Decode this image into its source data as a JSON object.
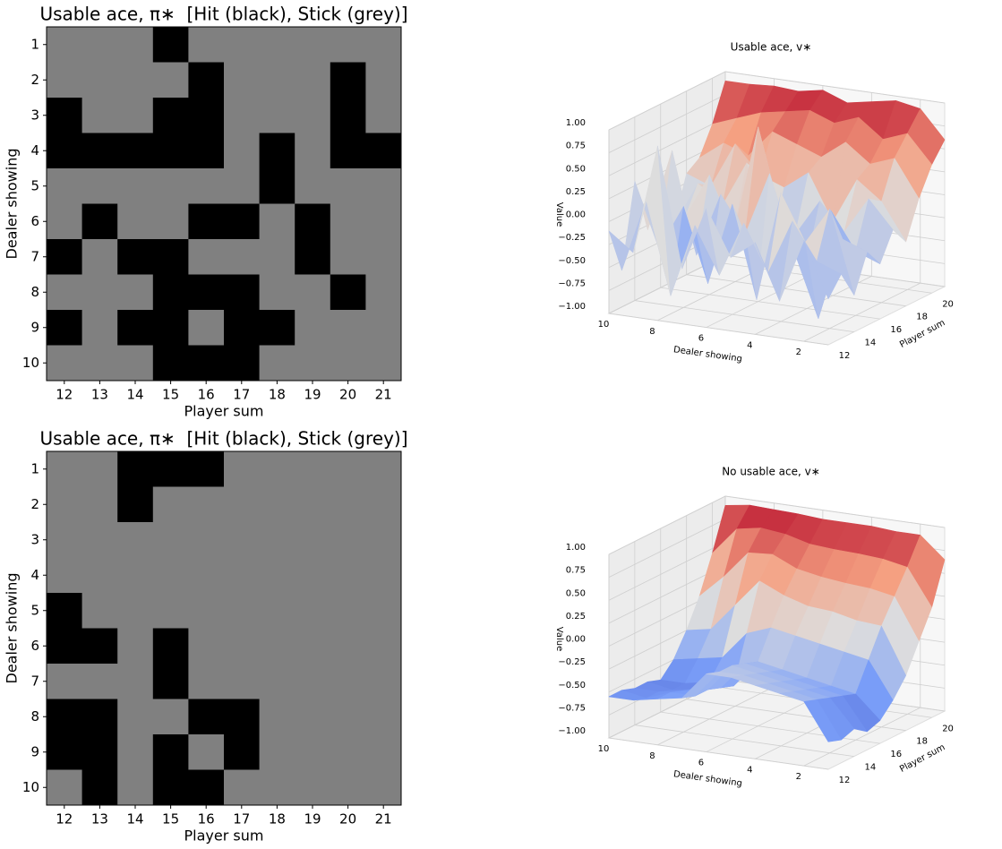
{
  "chart_data": [
    {
      "type": "heatmap",
      "title": "Usable ace, π∗  [Hit (black), Stick (grey)]",
      "xlabel": "Player sum",
      "ylabel": "Dealer showing",
      "categories": [
        12,
        13,
        14,
        15,
        16,
        17,
        18,
        19,
        20,
        21
      ],
      "rows": [
        1,
        2,
        3,
        4,
        5,
        6,
        7,
        8,
        9,
        10
      ],
      "colors": [
        "#808080",
        "#000000"
      ],
      "values": [
        [
          0,
          0,
          0,
          1,
          0,
          0,
          0,
          0,
          0,
          0
        ],
        [
          0,
          0,
          0,
          0,
          1,
          0,
          0,
          0,
          1,
          0
        ],
        [
          1,
          0,
          0,
          1,
          1,
          0,
          0,
          0,
          1,
          0
        ],
        [
          1,
          1,
          1,
          1,
          1,
          0,
          1,
          0,
          1,
          1
        ],
        [
          0,
          0,
          0,
          0,
          0,
          0,
          1,
          0,
          0,
          0
        ],
        [
          0,
          1,
          0,
          0,
          1,
          1,
          0,
          1,
          0,
          0
        ],
        [
          1,
          0,
          1,
          1,
          0,
          0,
          0,
          1,
          0,
          0
        ],
        [
          0,
          0,
          0,
          1,
          1,
          1,
          0,
          0,
          1,
          0
        ],
        [
          1,
          0,
          1,
          1,
          0,
          1,
          1,
          0,
          0,
          0
        ],
        [
          0,
          0,
          0,
          1,
          1,
          1,
          0,
          0,
          0,
          0
        ]
      ]
    },
    {
      "type": "surface",
      "title": "Usable ace, v∗",
      "xlabel": "Dealer showing",
      "ylabel": "Player sum",
      "zlabel": "Value",
      "dealer": [
        1,
        2,
        3,
        4,
        5,
        6,
        7,
        8,
        9,
        10
      ],
      "player": [
        12,
        13,
        14,
        15,
        16,
        17,
        18,
        19,
        20,
        21
      ],
      "xticks": [
        2,
        4,
        6,
        8,
        10
      ],
      "yticks": [
        12,
        14,
        16,
        18,
        20
      ],
      "zlim": [
        -1,
        1
      ],
      "zticks": [
        {
          "value": -1,
          "label": "−1.00"
        },
        {
          "value": -0.75,
          "label": "−0.75"
        },
        {
          "value": -0.5,
          "label": "−0.50"
        },
        {
          "value": -0.25,
          "label": "−0.25"
        },
        {
          "value": 0,
          "label": "0.00"
        },
        {
          "value": 0.25,
          "label": "0.25"
        },
        {
          "value": 0.5,
          "label": "0.50"
        },
        {
          "value": 0.75,
          "label": "0.75"
        },
        {
          "value": 1,
          "label": "1.00"
        }
      ],
      "colormap": "coolwarm",
      "values": [
        [
          -0.5,
          -0.3,
          -0.6,
          -0.2,
          -0.4,
          -0.1,
          -0.3,
          0.1,
          0.4,
          0.6
        ],
        [
          0.1,
          -0.2,
          0.3,
          -0.1,
          -0.3,
          0.2,
          0.1,
          0.5,
          0.7,
          0.9
        ],
        [
          -0.6,
          0.2,
          -0.1,
          -1.0,
          0.1,
          -0.2,
          0.3,
          0.4,
          0.6,
          0.95
        ],
        [
          0.0,
          -0.4,
          0.4,
          -0.3,
          -0.5,
          0.1,
          -0.2,
          0.6,
          0.8,
          0.9
        ],
        [
          -0.2,
          0.1,
          -0.8,
          0.5,
          -0.1,
          -0.3,
          0.3,
          0.4,
          0.7,
          0.85
        ],
        [
          0.3,
          -0.5,
          0.2,
          -0.2,
          0.9,
          -0.6,
          0.1,
          0.5,
          0.8,
          0.95
        ],
        [
          -0.4,
          0.0,
          -0.7,
          0.2,
          -0.3,
          0.4,
          0.2,
          0.6,
          0.75,
          0.9
        ],
        [
          0.9,
          -0.8,
          0.1,
          -0.5,
          0.3,
          -0.1,
          0.5,
          0.3,
          0.7,
          0.92
        ],
        [
          -0.3,
          0.2,
          -0.4,
          0.6,
          -0.2,
          0.1,
          0.0,
          0.4,
          0.6,
          0.9
        ],
        [
          -0.1,
          -0.6,
          0.3,
          -0.3,
          0.2,
          -0.4,
          0.1,
          0.2,
          0.5,
          0.9
        ]
      ]
    },
    {
      "type": "heatmap",
      "title": "Usable ace, π∗  [Hit (black), Stick (grey)]",
      "xlabel": "Player sum",
      "ylabel": "Dealer showing",
      "categories": [
        12,
        13,
        14,
        15,
        16,
        17,
        18,
        19,
        20,
        21
      ],
      "rows": [
        1,
        2,
        3,
        4,
        5,
        6,
        7,
        8,
        9,
        10
      ],
      "colors": [
        "#808080",
        "#000000"
      ],
      "values": [
        [
          0,
          0,
          1,
          1,
          1,
          0,
          0,
          0,
          0,
          0
        ],
        [
          0,
          0,
          1,
          0,
          0,
          0,
          0,
          0,
          0,
          0
        ],
        [
          0,
          0,
          0,
          0,
          0,
          0,
          0,
          0,
          0,
          0
        ],
        [
          0,
          0,
          0,
          0,
          0,
          0,
          0,
          0,
          0,
          0
        ],
        [
          1,
          0,
          0,
          0,
          0,
          0,
          0,
          0,
          0,
          0
        ],
        [
          1,
          1,
          0,
          1,
          0,
          0,
          0,
          0,
          0,
          0
        ],
        [
          0,
          0,
          0,
          1,
          0,
          0,
          0,
          0,
          0,
          0
        ],
        [
          1,
          1,
          0,
          0,
          1,
          1,
          0,
          0,
          0,
          0
        ],
        [
          1,
          1,
          0,
          1,
          0,
          1,
          0,
          0,
          0,
          0
        ],
        [
          0,
          1,
          0,
          1,
          1,
          0,
          0,
          0,
          0,
          0
        ]
      ]
    },
    {
      "type": "surface",
      "title": "No usable ace, v∗",
      "xlabel": "Dealer showing",
      "ylabel": "Player sum",
      "zlabel": "Value",
      "dealer": [
        1,
        2,
        3,
        4,
        5,
        6,
        7,
        8,
        9,
        10
      ],
      "player": [
        12,
        13,
        14,
        15,
        16,
        17,
        18,
        19,
        20,
        21
      ],
      "xticks": [
        2,
        4,
        6,
        8,
        10
      ],
      "yticks": [
        12,
        14,
        16,
        18,
        20
      ],
      "zlim": [
        -1,
        1
      ],
      "zticks": [
        {
          "value": -1,
          "label": "−1.00"
        },
        {
          "value": -0.75,
          "label": "−0.75"
        },
        {
          "value": -0.5,
          "label": "−0.50"
        },
        {
          "value": -0.25,
          "label": "−0.25"
        },
        {
          "value": 0,
          "label": "0.00"
        },
        {
          "value": 0.25,
          "label": "0.25"
        },
        {
          "value": 0.5,
          "label": "0.50"
        },
        {
          "value": 0.75,
          "label": "0.75"
        },
        {
          "value": 1,
          "label": "1.00"
        }
      ],
      "colormap": "coolwarm",
      "values": [
        [
          -0.7,
          -0.75,
          -0.7,
          -0.8,
          -0.75,
          -0.6,
          -0.4,
          -0.1,
          0.2,
          0.65
        ],
        [
          -0.3,
          -0.35,
          -0.4,
          -0.45,
          -0.5,
          -0.2,
          0.1,
          0.35,
          0.6,
          0.88
        ],
        [
          -0.25,
          -0.3,
          -0.35,
          -0.4,
          -0.45,
          -0.15,
          0.12,
          0.4,
          0.65,
          0.88
        ],
        [
          -0.2,
          -0.25,
          -0.3,
          -0.35,
          -0.4,
          -0.1,
          0.18,
          0.42,
          0.67,
          0.9
        ],
        [
          -0.15,
          -0.2,
          -0.25,
          -0.3,
          -0.35,
          -0.05,
          0.2,
          0.45,
          0.68,
          0.9
        ],
        [
          -0.15,
          -0.2,
          -0.2,
          -0.25,
          -0.3,
          0.0,
          0.28,
          0.5,
          0.7,
          0.9
        ],
        [
          -0.45,
          -0.5,
          -0.5,
          -0.55,
          -0.6,
          -0.1,
          0.4,
          0.62,
          0.77,
          0.92
        ],
        [
          -0.5,
          -0.5,
          -0.55,
          -0.6,
          -0.6,
          -0.4,
          0.1,
          0.6,
          0.8,
          0.93
        ],
        [
          -0.55,
          -0.6,
          -0.6,
          -0.65,
          -0.65,
          -0.45,
          -0.2,
          0.3,
          0.75,
          0.94
        ],
        [
          -0.55,
          -0.55,
          -0.6,
          -0.6,
          -0.65,
          -0.5,
          -0.25,
          0.05,
          0.45,
          0.9
        ]
      ]
    }
  ]
}
